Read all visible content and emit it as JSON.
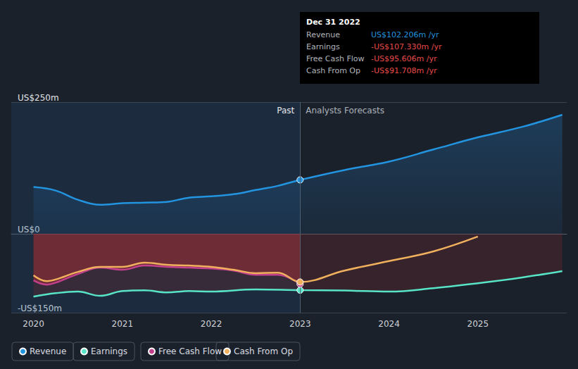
{
  "chart_data": {
    "type": "line",
    "xlim": [
      2019.75,
      2026
    ],
    "xticks": [
      2020,
      2021,
      2022,
      2023,
      2024,
      2025
    ],
    "ylim": [
      -150,
      250
    ],
    "yticks": [
      {
        "value": 250,
        "label": "US$250m"
      },
      {
        "value": 0,
        "label": "US$0"
      },
      {
        "value": -150,
        "label": "-US$150m"
      }
    ],
    "grid": true,
    "legend": "bottom-left",
    "series": [
      {
        "name": "Revenue",
        "color": "#2394df",
        "type": "area",
        "x": [
          2020,
          2020.25,
          2020.5,
          2020.75,
          2021,
          2021.25,
          2021.5,
          2021.75,
          2022,
          2022.25,
          2022.5,
          2022.75,
          2023,
          2023.5,
          2024,
          2024.5,
          2025,
          2025.5,
          2025.95
        ],
        "values": [
          88.7,
          82,
          64.5,
          55,
          58,
          59,
          60.5,
          68.5,
          71,
          75,
          83,
          91,
          102.206,
          121,
          137,
          160,
          183,
          203,
          226
        ]
      },
      {
        "name": "Earnings",
        "color": "#58e4c6",
        "type": "area",
        "x": [
          2020,
          2020.25,
          2020.5,
          2020.75,
          2021,
          2021.25,
          2021.5,
          2021.75,
          2022,
          2022.5,
          2023,
          2023.5,
          2024,
          2024.5,
          2025,
          2025.5,
          2025.95
        ],
        "values": [
          -119.6,
          -113,
          -110,
          -118,
          -109,
          -107.5,
          -111.5,
          -109,
          -110,
          -106,
          -107.33,
          -108,
          -110,
          -103.5,
          -94,
          -83,
          -71
        ]
      },
      {
        "name": "Free Cash Flow",
        "color": "#c2418d",
        "type": "area",
        "x": [
          2020,
          2020.15,
          2020.25,
          2020.5,
          2020.75,
          2021,
          2021.25,
          2021.5,
          2021.75,
          2022,
          2022.25,
          2022.5,
          2022.75,
          2023
        ],
        "values": [
          -88.7,
          -96.8,
          -93,
          -76.6,
          -64.5,
          -68.5,
          -60.5,
          -63,
          -64.5,
          -66,
          -70,
          -78,
          -78,
          -95.606
        ]
      },
      {
        "name": "Cash From Op",
        "color": "#f0b05e",
        "type": "line",
        "x": [
          2020,
          2020.15,
          2020.25,
          2020.5,
          2020.75,
          2021,
          2021.25,
          2021.5,
          2021.75,
          2022,
          2022.25,
          2022.5,
          2022.75,
          2023,
          2023.5,
          2024,
          2024.5,
          2025
        ],
        "values": [
          -79,
          -90,
          -87,
          -72.6,
          -63,
          -63,
          -55,
          -59,
          -60.5,
          -63,
          -68.5,
          -75,
          -74,
          -91.708,
          -70,
          -52,
          -33.6,
          -5.4
        ]
      }
    ],
    "annotations": [
      {
        "text": "Past",
        "x": 2023
      },
      {
        "text": "Analysts Forecasts",
        "x": 2023
      }
    ],
    "tooltip": {
      "title": "Dec 31 2022",
      "x": 2023,
      "rows": [
        {
          "label": "Revenue",
          "value": 102.206,
          "value_label": "US$102.206m /yr"
        },
        {
          "label": "Earnings",
          "value": -107.33,
          "value_label": "-US$107.330m /yr"
        },
        {
          "label": "Free Cash Flow",
          "value": -95.606,
          "value_label": "-US$95.606m /yr"
        },
        {
          "label": "Cash From Op",
          "value": -91.708,
          "value_label": "-US$91.708m /yr"
        }
      ]
    }
  }
}
